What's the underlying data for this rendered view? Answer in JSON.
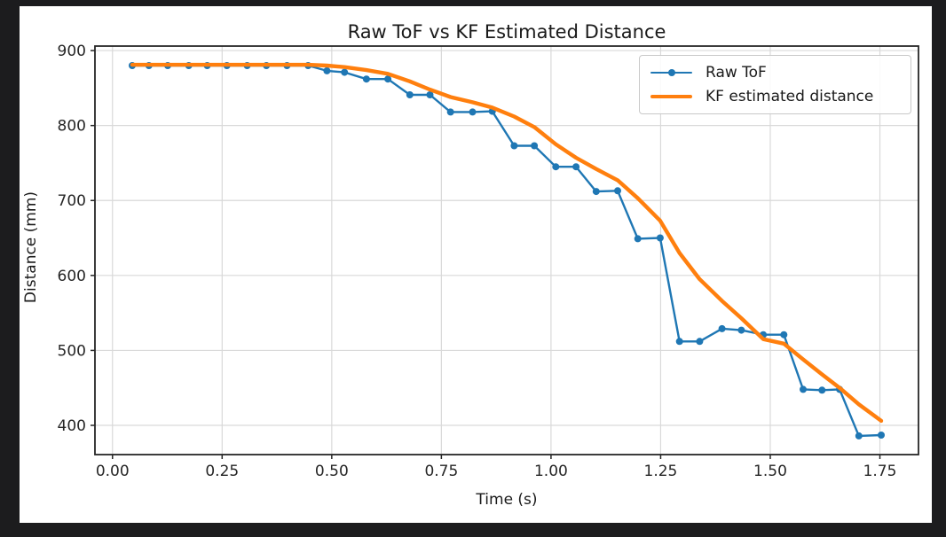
{
  "frame": {
    "background_color": "#1c1c1e",
    "figure_background_color": "#ffffff"
  },
  "chart_data": {
    "type": "line",
    "title": "Raw ToF vs KF Estimated Distance",
    "xlabel": "Time (s)",
    "ylabel": "Distance (mm)",
    "xlim": [
      -0.04,
      1.838
    ],
    "ylim": [
      361,
      906
    ],
    "grid": true,
    "grid_color": "#d9d9d9",
    "spine_color": "#262626",
    "tick_label_color": "#262626",
    "xticks": {
      "values": [
        0,
        0.25,
        0.5,
        0.75,
        1.0,
        1.25,
        1.5,
        1.75
      ],
      "labels": [
        "0.00",
        "0.25",
        "0.50",
        "0.75",
        "1.00",
        "1.25",
        "1.50",
        "1.75"
      ]
    },
    "yticks": {
      "values": [
        400,
        500,
        600,
        700,
        800,
        900
      ],
      "labels": [
        "400",
        "500",
        "600",
        "700",
        "800",
        "900"
      ]
    },
    "x": [
      0.045,
      0.083,
      0.126,
      0.174,
      0.216,
      0.261,
      0.307,
      0.351,
      0.398,
      0.446,
      0.489,
      0.529,
      0.579,
      0.628,
      0.678,
      0.724,
      0.771,
      0.821,
      0.866,
      0.916,
      0.962,
      1.011,
      1.057,
      1.103,
      1.152,
      1.198,
      1.249,
      1.293,
      1.339,
      1.39,
      1.434,
      1.484,
      1.531,
      1.575,
      1.618,
      1.658,
      1.702,
      1.753
    ],
    "series": [
      {
        "name": "Raw ToF",
        "color": "#1f77b4",
        "marker": "circle",
        "marker_size": 4,
        "line_width": 2.4,
        "values": [
          880,
          880,
          880,
          880,
          880,
          880,
          880,
          880,
          880,
          880,
          873,
          871,
          862,
          862,
          841,
          841,
          818,
          818,
          819,
          773,
          773,
          745,
          745,
          712,
          713,
          649,
          650,
          512,
          512,
          529,
          527,
          521,
          521,
          448,
          447,
          448,
          386,
          387
        ]
      },
      {
        "name": "KF estimated distance",
        "color": "#ff7f0e",
        "marker": "none",
        "marker_size": 0,
        "line_width": 4.4,
        "values": [
          881,
          881,
          881,
          881,
          881,
          881,
          881,
          881,
          881,
          881,
          880,
          878,
          874,
          869,
          859,
          848,
          838,
          831,
          824,
          812,
          798,
          775,
          757,
          742,
          727,
          703,
          673,
          630,
          595,
          566,
          543,
          515,
          509,
          488,
          468,
          450,
          428,
          406
        ]
      }
    ],
    "legend": {
      "position": "upper-right",
      "entries": [
        "Raw ToF",
        "KF estimated distance"
      ]
    }
  }
}
